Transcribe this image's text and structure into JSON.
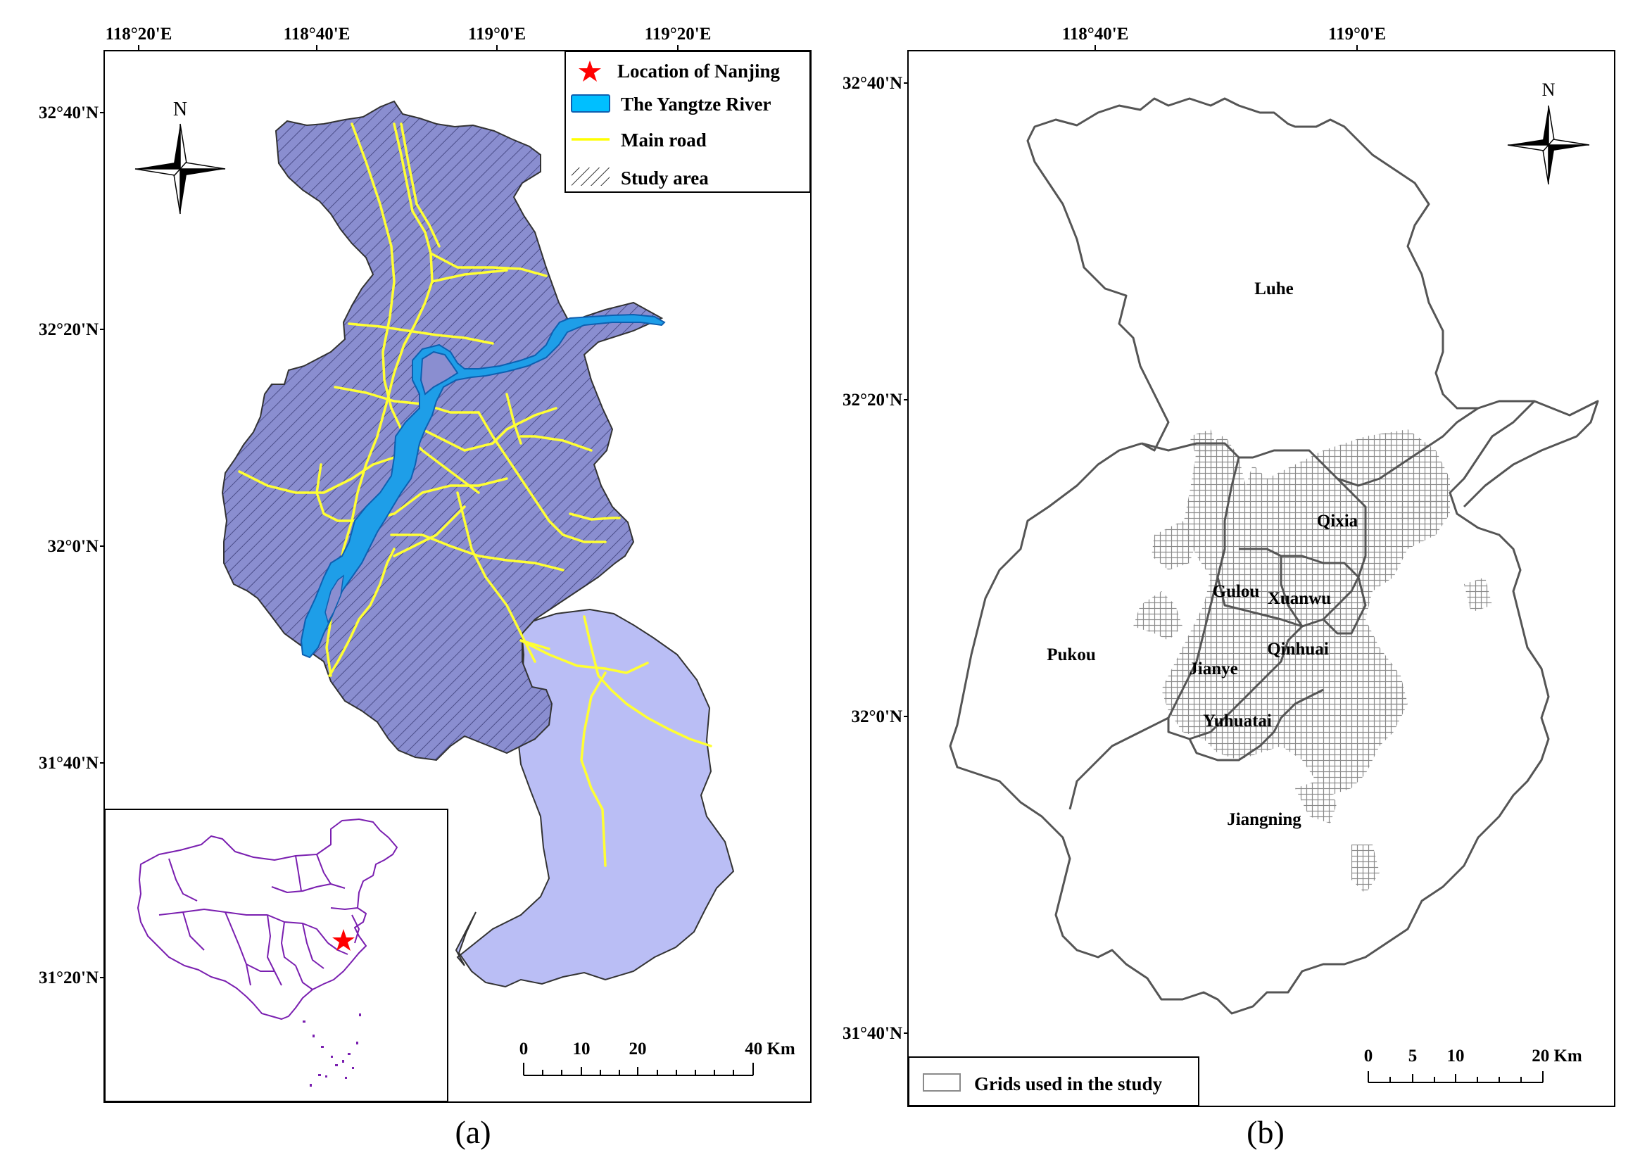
{
  "panel_a": {
    "caption": "(a)",
    "lon_ticks": [
      "118°20'E",
      "118°40'E",
      "119°0'E",
      "119°20'E"
    ],
    "lat_ticks": [
      "32°40'N",
      "32°20'N",
      "32°0'N",
      "31°40'N",
      "31°20'N"
    ],
    "north_label": "N",
    "legend": [
      {
        "label": "Location of  Nanjing",
        "symbol": "red-star",
        "color": "#ff0000"
      },
      {
        "label": "The Yangtze River",
        "symbol": "river",
        "color": "#00bfff"
      },
      {
        "label": "Main road",
        "symbol": "line",
        "color": "#ffff00"
      },
      {
        "label": "Study area",
        "symbol": "hatch",
        "color": "#000000"
      }
    ],
    "scale_labels": [
      "0",
      "10",
      "20",
      "40 Km"
    ],
    "colors": {
      "study_area_fill": "#8a8ed0",
      "outer_area_fill": "#babef5",
      "river": "#1e9ee8",
      "road": "#ffff33",
      "inset_outline": "#7a1fb0"
    }
  },
  "panel_b": {
    "caption": "(b)",
    "lon_ticks": [
      "118°40'E",
      "119°0'E"
    ],
    "lat_ticks": [
      "32°40'N",
      "32°20'N",
      "32°0'N",
      "31°40'N"
    ],
    "north_label": "N",
    "districts": [
      "Luhe",
      "Qixia",
      "Gulou",
      "Xuanwu",
      "Qinhuai",
      "Pukou",
      "Jianye",
      "Yuhuatai",
      "Jiangning"
    ],
    "legend": [
      {
        "label": "Grids used in the study",
        "symbol": "grid-cell"
      }
    ],
    "scale_labels": [
      "0",
      "5",
      "10",
      "20 Km"
    ],
    "colors": {
      "boundary": "#555555",
      "grid": "#8a8a8a"
    }
  }
}
